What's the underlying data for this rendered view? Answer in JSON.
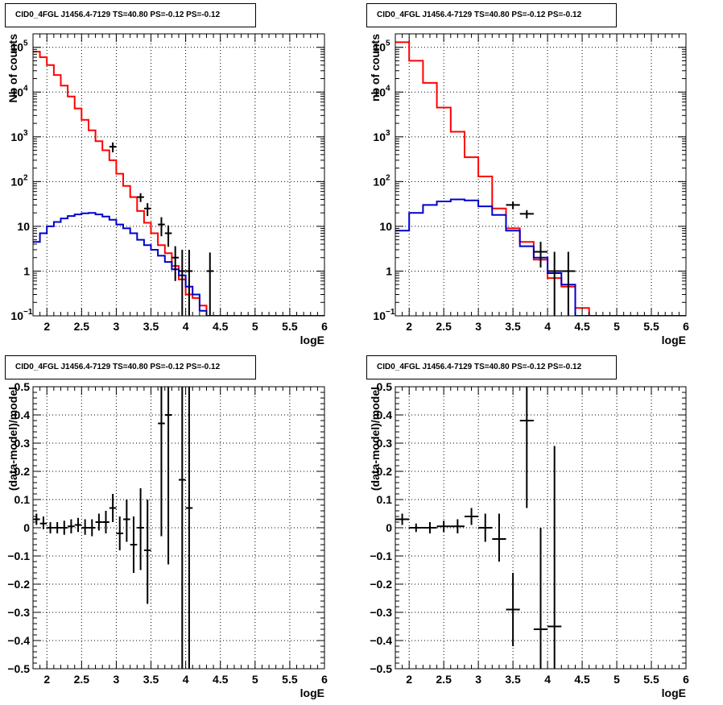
{
  "chart_data": [
    {
      "panel": "top-left",
      "type": "histogram",
      "title": "CID0_4FGL J1456.4-7129 TS=40.80 PS=-0.12 PS=-0.12",
      "xlabel": "logE",
      "ylabel": "Nb of counts",
      "xlim": [
        1.8,
        6.0
      ],
      "ylim": [
        0.1,
        200000
      ],
      "yscale": "log",
      "xticks": [
        "2",
        "2.5",
        "3",
        "3.5",
        "4",
        "4.5",
        "5",
        "5.5",
        "6"
      ],
      "yticks": [
        {
          "v": 0.1,
          "m": "10",
          "e": "−1"
        },
        {
          "v": 1,
          "m": "1",
          "e": ""
        },
        {
          "v": 10,
          "m": "10",
          "e": ""
        },
        {
          "v": 100,
          "m": "10",
          "e": "2"
        },
        {
          "v": 1000,
          "m": "10",
          "e": "3"
        },
        {
          "v": 10000,
          "m": "10",
          "e": "4"
        },
        {
          "v": 100000,
          "m": "10",
          "e": "5"
        }
      ],
      "grid": true,
      "series": [
        {
          "kind": "step",
          "color": "#ff0000",
          "edges": [
            1.8,
            1.9,
            2.0,
            2.1,
            2.2,
            2.3,
            2.4,
            2.5,
            2.6,
            2.7,
            2.8,
            2.9,
            3.0,
            3.1,
            3.2,
            3.3,
            3.4,
            3.5,
            3.6,
            3.7,
            3.8,
            3.9,
            4.0,
            4.1,
            4.2,
            4.3,
            4.4,
            4.5,
            4.6,
            4.7,
            4.8,
            4.9,
            5.0,
            5.1,
            5.2,
            5.3,
            5.4,
            5.5,
            5.6,
            5.7,
            5.8,
            5.9,
            6.0
          ],
          "values": [
            80000,
            60000,
            40000,
            24000,
            14000,
            8000,
            4300,
            2400,
            1400,
            800,
            500,
            300,
            150,
            80,
            45,
            22,
            12,
            7,
            3.8,
            2.5,
            1.3,
            0.65,
            0.3,
            0.25,
            0.17,
            0.1,
            0.1,
            0.1,
            0.1,
            0.1,
            0.1,
            0.1,
            0.1,
            0.1,
            0.1,
            0.1,
            0.1,
            0.1,
            0.1,
            0.1,
            0.1,
            0.1
          ]
        },
        {
          "kind": "step",
          "color": "#0000cc",
          "edges": [
            1.8,
            1.9,
            2.0,
            2.1,
            2.2,
            2.3,
            2.4,
            2.5,
            2.6,
            2.7,
            2.8,
            2.9,
            3.0,
            3.1,
            3.2,
            3.3,
            3.4,
            3.5,
            3.6,
            3.7,
            3.8,
            3.9,
            4.0,
            4.1,
            4.2,
            4.3,
            4.4,
            4.5,
            4.6,
            4.7,
            4.8,
            4.9,
            5.0,
            5.1,
            5.2,
            5.3,
            5.4,
            5.5,
            5.6,
            5.7,
            5.8,
            5.9,
            6.0
          ],
          "values": [
            4.5,
            7,
            10,
            12.5,
            15,
            17,
            18.5,
            19.5,
            20,
            18.5,
            16.5,
            14,
            11,
            9,
            7,
            5,
            3.8,
            3,
            2.2,
            1.6,
            1.1,
            0.8,
            0.45,
            0.3,
            0.13,
            0.1,
            0.1,
            0.1,
            0.1,
            0.1,
            0.1,
            0.1,
            0.1,
            0.1,
            0.1,
            0.1,
            0.1,
            0.1,
            0.1,
            0.1,
            0.1,
            0.1
          ]
        },
        {
          "kind": "points",
          "color": "#000000",
          "points": [
            {
              "x": 2.95,
              "y": 600,
              "xerr": 0.05,
              "ylo": 450,
              "yhi": 750
            },
            {
              "x": 3.35,
              "y": 45,
              "xerr": 0.05,
              "ylo": 35,
              "yhi": 55
            },
            {
              "x": 3.45,
              "y": 25,
              "xerr": 0.05,
              "ylo": 17,
              "yhi": 33
            },
            {
              "x": 3.65,
              "y": 11,
              "xerr": 0.05,
              "ylo": 6,
              "yhi": 16
            },
            {
              "x": 3.75,
              "y": 7,
              "xerr": 0.05,
              "ylo": 3.5,
              "yhi": 10.5
            },
            {
              "x": 3.85,
              "y": 2,
              "xerr": 0.05,
              "ylo": 0.6,
              "yhi": 3.6
            },
            {
              "x": 3.95,
              "y": 1,
              "xerr": 0.05,
              "ylo": 0.1,
              "yhi": 3
            },
            {
              "x": 4.05,
              "y": 1,
              "xerr": 0.05,
              "ylo": 0.1,
              "yhi": 3
            },
            {
              "x": 4.35,
              "y": 1,
              "xerr": 0.05,
              "ylo": 0.1,
              "yhi": 2.6
            }
          ]
        }
      ]
    },
    {
      "panel": "top-right",
      "type": "histogram",
      "title": "CID0_4FGL J1456.4-7129 TS=40.80 PS=-0.12 PS=-0.12",
      "xlabel": "logE",
      "ylabel": "nb of counts",
      "xlim": [
        1.8,
        6.0
      ],
      "ylim": [
        0.1,
        200000
      ],
      "yscale": "log",
      "xticks": [
        "2",
        "2.5",
        "3",
        "3.5",
        "4",
        "4.5",
        "5",
        "5.5",
        "6"
      ],
      "yticks": [
        {
          "v": 0.1,
          "m": "10",
          "e": "−1"
        },
        {
          "v": 1,
          "m": "1",
          "e": ""
        },
        {
          "v": 10,
          "m": "10",
          "e": ""
        },
        {
          "v": 100,
          "m": "10",
          "e": "2"
        },
        {
          "v": 1000,
          "m": "10",
          "e": "3"
        },
        {
          "v": 10000,
          "m": "10",
          "e": "4"
        },
        {
          "v": 100000,
          "m": "10",
          "e": "5"
        }
      ],
      "grid": true,
      "series": [
        {
          "kind": "step",
          "color": "#ff0000",
          "edges": [
            1.8,
            2.0,
            2.2,
            2.4,
            2.6,
            2.8,
            3.0,
            3.2,
            3.4,
            3.6,
            3.8,
            4.0,
            4.2,
            4.4,
            4.6,
            4.8,
            5.0,
            5.2,
            5.4,
            5.6,
            5.8,
            6.0
          ],
          "values": [
            130000,
            50000,
            16000,
            4500,
            1300,
            350,
            130,
            25,
            9,
            4.5,
            1.8,
            0.7,
            0.45,
            0.15,
            0.1,
            0.1,
            0.1,
            0.1,
            0.1,
            0.1,
            0.1
          ]
        },
        {
          "kind": "step",
          "color": "#0000cc",
          "edges": [
            1.8,
            2.0,
            2.2,
            2.4,
            2.6,
            2.8,
            3.0,
            3.2,
            3.4,
            3.6,
            3.8,
            4.0,
            4.2,
            4.4,
            4.6,
            4.8,
            5.0,
            5.2,
            5.4,
            5.6,
            5.8,
            6.0
          ],
          "values": [
            8,
            20,
            30,
            36,
            40,
            38,
            28,
            18,
            8,
            3.6,
            2,
            0.9,
            0.5,
            0.1,
            0.1,
            0.1,
            0.1,
            0.1,
            0.1,
            0.1,
            0.1
          ]
        },
        {
          "kind": "points",
          "color": "#000000",
          "points": [
            {
              "x": 3.5,
              "y": 30,
              "xerr": 0.1,
              "ylo": 24,
              "yhi": 36
            },
            {
              "x": 3.7,
              "y": 19,
              "xerr": 0.1,
              "ylo": 15,
              "yhi": 23
            },
            {
              "x": 3.9,
              "y": 2.7,
              "xerr": 0.1,
              "ylo": 1.2,
              "yhi": 4.5
            },
            {
              "x": 4.1,
              "y": 1,
              "xerr": 0.1,
              "ylo": 0.1,
              "yhi": 2.7
            },
            {
              "x": 4.3,
              "y": 1,
              "xerr": 0.1,
              "ylo": 0.1,
              "yhi": 2.7
            }
          ]
        }
      ]
    },
    {
      "panel": "bottom-left",
      "type": "scatter",
      "title": "CID0_4FGL J1456.4-7129 TS=40.80 PS=-0.12 PS=-0.12",
      "xlabel": "logE",
      "ylabel": "(data-model)/model",
      "xlim": [
        1.8,
        6.0
      ],
      "ylim": [
        -0.5,
        0.5
      ],
      "yscale": "linear",
      "xticks": [
        "2",
        "2.5",
        "3",
        "3.5",
        "4",
        "4.5",
        "5",
        "5.5",
        "6"
      ],
      "yticks": [
        "−0.5",
        "−0.4",
        "−0.3",
        "−0.2",
        "−0.1",
        "0",
        "0.1",
        "0.2",
        "0.3",
        "0.4",
        "0.5"
      ],
      "grid": true,
      "series": [
        {
          "kind": "points",
          "color": "#000000",
          "points": [
            {
              "x": 1.85,
              "y": 0.03,
              "xerr": 0.05,
              "ylo": 0.01,
              "yhi": 0.05
            },
            {
              "x": 1.95,
              "y": 0.015,
              "xerr": 0.05,
              "ylo": -0.005,
              "yhi": 0.04
            },
            {
              "x": 2.05,
              "y": 0.0,
              "xerr": 0.05,
              "ylo": -0.02,
              "yhi": 0.02
            },
            {
              "x": 2.15,
              "y": 0.0,
              "xerr": 0.05,
              "ylo": -0.02,
              "yhi": 0.02
            },
            {
              "x": 2.25,
              "y": 0.0,
              "xerr": 0.05,
              "ylo": -0.025,
              "yhi": 0.025
            },
            {
              "x": 2.35,
              "y": 0.005,
              "xerr": 0.05,
              "ylo": -0.02,
              "yhi": 0.03
            },
            {
              "x": 2.45,
              "y": 0.01,
              "xerr": 0.05,
              "ylo": -0.015,
              "yhi": 0.035
            },
            {
              "x": 2.55,
              "y": 0.0,
              "xerr": 0.05,
              "ylo": -0.025,
              "yhi": 0.03
            },
            {
              "x": 2.65,
              "y": 0.0,
              "xerr": 0.05,
              "ylo": -0.03,
              "yhi": 0.03
            },
            {
              "x": 2.75,
              "y": 0.02,
              "xerr": 0.05,
              "ylo": -0.01,
              "yhi": 0.05
            },
            {
              "x": 2.85,
              "y": 0.02,
              "xerr": 0.05,
              "ylo": -0.02,
              "yhi": 0.06
            },
            {
              "x": 2.95,
              "y": 0.07,
              "xerr": 0.05,
              "ylo": 0.02,
              "yhi": 0.12
            },
            {
              "x": 3.05,
              "y": -0.02,
              "xerr": 0.05,
              "ylo": -0.08,
              "yhi": 0.04
            },
            {
              "x": 3.15,
              "y": 0.03,
              "xerr": 0.05,
              "ylo": -0.05,
              "yhi": 0.1
            },
            {
              "x": 3.25,
              "y": -0.06,
              "xerr": 0.05,
              "ylo": -0.16,
              "yhi": 0.04
            },
            {
              "x": 3.35,
              "y": 0.0,
              "xerr": 0.05,
              "ylo": -0.15,
              "yhi": 0.14
            },
            {
              "x": 3.45,
              "y": -0.08,
              "xerr": 0.05,
              "ylo": -0.27,
              "yhi": 0.1
            },
            {
              "x": 3.65,
              "y": 0.37,
              "xerr": 0.05,
              "ylo": -0.03,
              "yhi": 0.5
            },
            {
              "x": 3.75,
              "y": 0.4,
              "xerr": 0.05,
              "ylo": -0.13,
              "yhi": 0.5
            },
            {
              "x": 3.95,
              "y": 0.17,
              "xerr": 0.05,
              "ylo": -0.5,
              "yhi": 0.5
            },
            {
              "x": 4.05,
              "y": 0.07,
              "xerr": 0.05,
              "ylo": -0.5,
              "yhi": 0.5
            }
          ]
        }
      ]
    },
    {
      "panel": "bottom-right",
      "type": "scatter",
      "title": "CID0_4FGL J1456.4-7129 TS=40.80 PS=-0.12 PS=-0.12",
      "xlabel": "logE",
      "ylabel": "(data-model)/model",
      "xlim": [
        1.8,
        6.0
      ],
      "ylim": [
        -0.5,
        0.5
      ],
      "yscale": "linear",
      "xticks": [
        "2",
        "2.5",
        "3",
        "3.5",
        "4",
        "4.5",
        "5",
        "5.5",
        "6"
      ],
      "yticks": [
        "−0.5",
        "−0.4",
        "−0.3",
        "−0.2",
        "−0.1",
        "0",
        "0.1",
        "0.2",
        "0.3",
        "0.4",
        "0.5"
      ],
      "grid": true,
      "series": [
        {
          "kind": "points",
          "color": "#000000",
          "points": [
            {
              "x": 1.9,
              "y": 0.03,
              "xerr": 0.1,
              "ylo": 0.01,
              "yhi": 0.05
            },
            {
              "x": 2.1,
              "y": 0.0,
              "xerr": 0.1,
              "ylo": -0.015,
              "yhi": 0.015
            },
            {
              "x": 2.3,
              "y": 0.0,
              "xerr": 0.1,
              "ylo": -0.02,
              "yhi": 0.02
            },
            {
              "x": 2.5,
              "y": 0.005,
              "xerr": 0.1,
              "ylo": -0.015,
              "yhi": 0.025
            },
            {
              "x": 2.7,
              "y": 0.005,
              "xerr": 0.1,
              "ylo": -0.02,
              "yhi": 0.03
            },
            {
              "x": 2.9,
              "y": 0.04,
              "xerr": 0.1,
              "ylo": 0.01,
              "yhi": 0.07
            },
            {
              "x": 3.1,
              "y": 0.0,
              "xerr": 0.1,
              "ylo": -0.05,
              "yhi": 0.05
            },
            {
              "x": 3.3,
              "y": -0.04,
              "xerr": 0.1,
              "ylo": -0.12,
              "yhi": 0.05
            },
            {
              "x": 3.5,
              "y": -0.29,
              "xerr": 0.1,
              "ylo": -0.42,
              "yhi": -0.16
            },
            {
              "x": 3.7,
              "y": 0.38,
              "xerr": 0.1,
              "ylo": 0.07,
              "yhi": 0.5
            },
            {
              "x": 3.9,
              "y": -0.36,
              "xerr": 0.1,
              "ylo": -0.5,
              "yhi": 0.0
            },
            {
              "x": 4.1,
              "y": -0.35,
              "xerr": 0.1,
              "ylo": -0.5,
              "yhi": 0.29
            }
          ]
        }
      ]
    }
  ]
}
